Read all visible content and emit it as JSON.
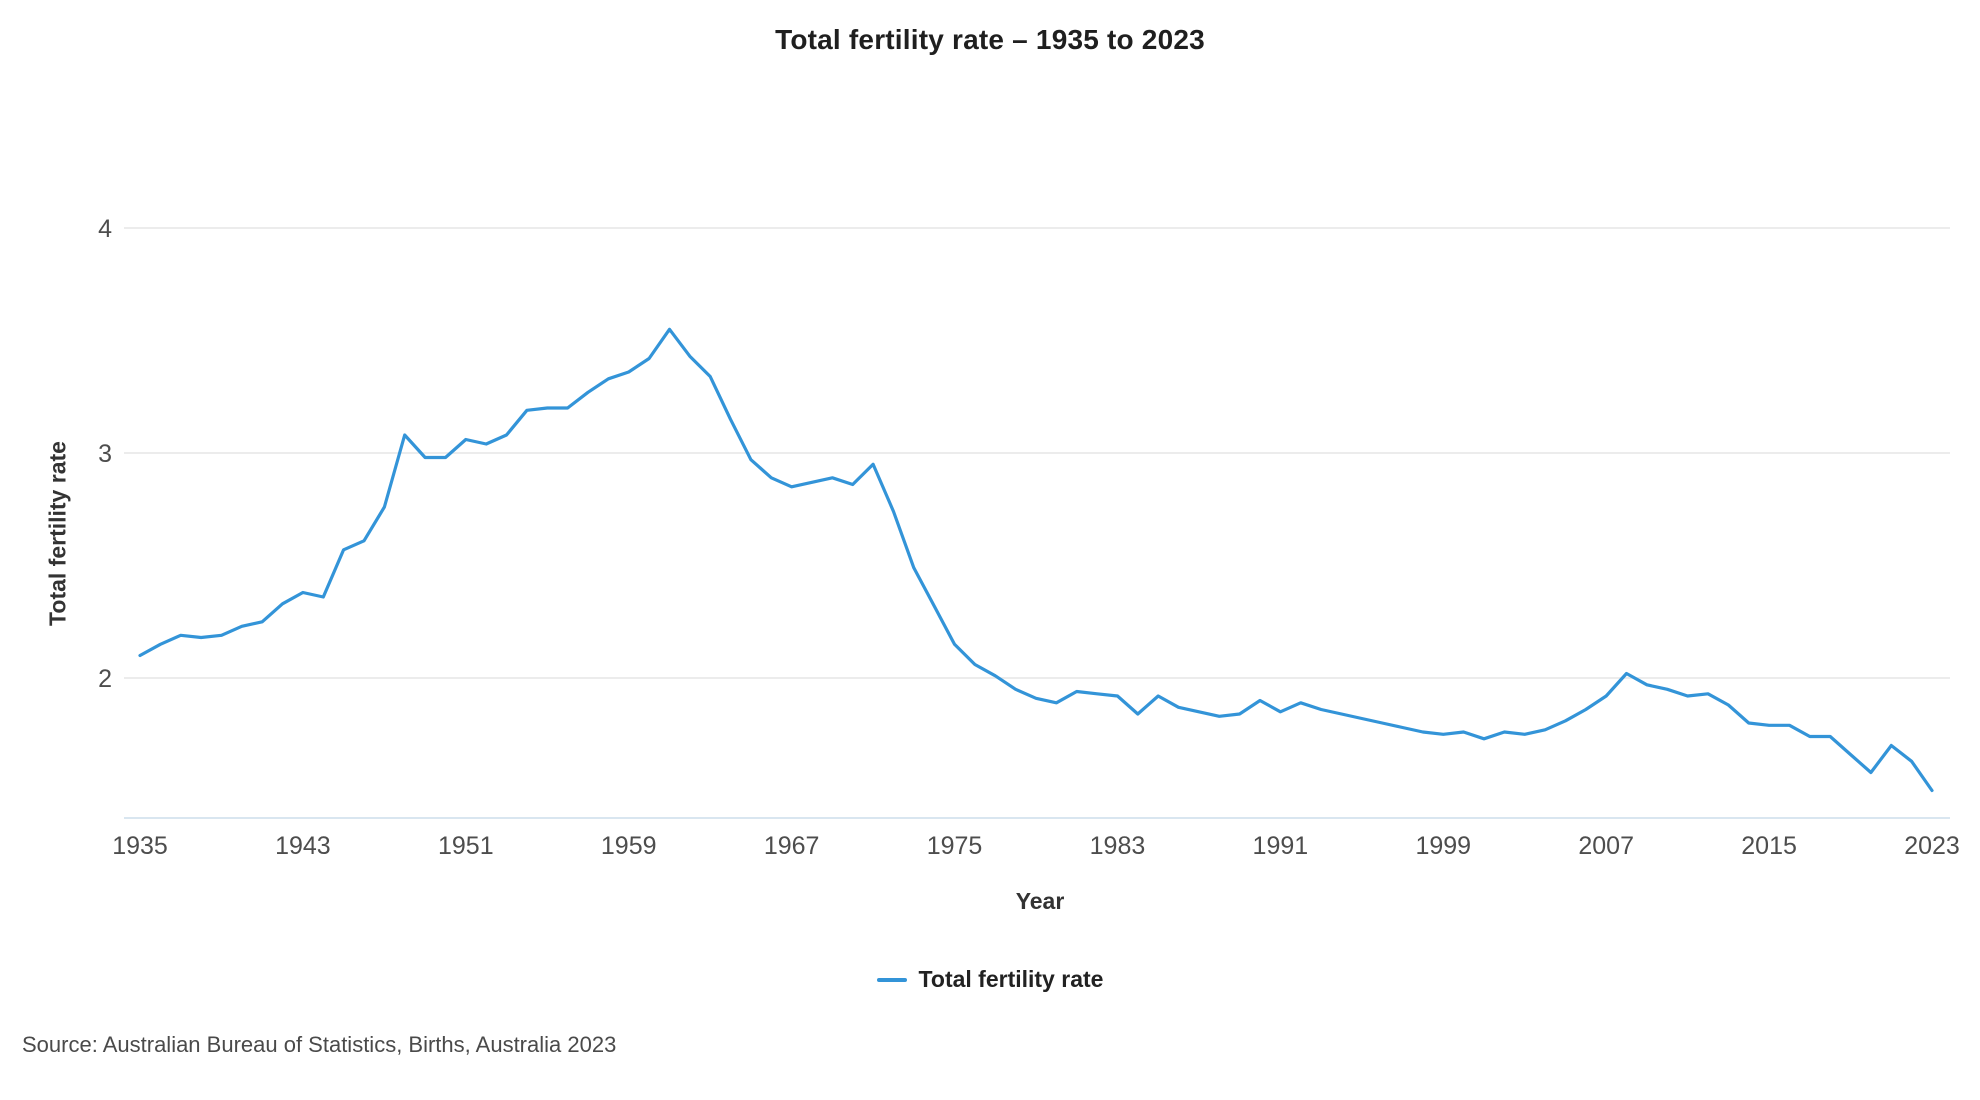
{
  "chart": {
    "title": "Total fertility rate – 1935 to 2023",
    "xlabel": "Year",
    "ylabel": "Total fertility rate",
    "legend_label": "Total fertility rate",
    "source": "Source: Australian Bureau of Statistics, Births, Australia 2023"
  },
  "colors": {
    "line": "#3394d8",
    "grid": "#e6e6e6",
    "axis_line": "#d9e6f0",
    "tick_text": "#4d4d4d"
  },
  "chart_data": {
    "type": "line",
    "title": "Total fertility rate – 1935 to 2023",
    "xlabel": "Year",
    "ylabel": "Total fertility rate",
    "grid": "horizontal",
    "legend_position": "bottom",
    "xlim": [
      1935,
      2023
    ],
    "ylim": [
      1.38,
      4.35
    ],
    "x_ticks": [
      1935,
      1943,
      1951,
      1959,
      1967,
      1975,
      1983,
      1991,
      1999,
      2007,
      2015,
      2023
    ],
    "y_ticks": [
      2,
      3,
      4
    ],
    "series": [
      {
        "name": "Total fertility rate",
        "color": "#3394d8",
        "x": [
          1935,
          1936,
          1937,
          1938,
          1939,
          1940,
          1941,
          1942,
          1943,
          1944,
          1945,
          1946,
          1947,
          1948,
          1949,
          1950,
          1951,
          1952,
          1953,
          1954,
          1955,
          1956,
          1957,
          1958,
          1959,
          1960,
          1961,
          1962,
          1963,
          1964,
          1965,
          1966,
          1967,
          1968,
          1969,
          1970,
          1971,
          1972,
          1973,
          1974,
          1975,
          1976,
          1977,
          1978,
          1979,
          1980,
          1981,
          1982,
          1983,
          1984,
          1985,
          1986,
          1987,
          1988,
          1989,
          1990,
          1991,
          1992,
          1993,
          1994,
          1995,
          1996,
          1997,
          1998,
          1999,
          2000,
          2001,
          2002,
          2003,
          2004,
          2005,
          2006,
          2007,
          2008,
          2009,
          2010,
          2011,
          2012,
          2013,
          2014,
          2015,
          2016,
          2017,
          2018,
          2019,
          2020,
          2021,
          2022,
          2023
        ],
        "values": [
          2.1,
          2.15,
          2.19,
          2.18,
          2.19,
          2.23,
          2.25,
          2.33,
          2.38,
          2.36,
          2.57,
          2.61,
          2.76,
          3.08,
          2.98,
          2.98,
          3.06,
          3.04,
          3.08,
          3.19,
          3.2,
          3.2,
          3.27,
          3.33,
          3.36,
          3.42,
          3.55,
          3.43,
          3.34,
          3.15,
          2.97,
          2.89,
          2.85,
          2.87,
          2.89,
          2.86,
          2.95,
          2.74,
          2.49,
          2.32,
          2.15,
          2.06,
          2.01,
          1.95,
          1.91,
          1.89,
          1.94,
          1.93,
          1.92,
          1.84,
          1.92,
          1.87,
          1.85,
          1.83,
          1.84,
          1.9,
          1.85,
          1.89,
          1.86,
          1.84,
          1.82,
          1.8,
          1.78,
          1.76,
          1.75,
          1.76,
          1.73,
          1.76,
          1.75,
          1.77,
          1.81,
          1.86,
          1.92,
          2.02,
          1.97,
          1.95,
          1.92,
          1.93,
          1.88,
          1.8,
          1.79,
          1.79,
          1.74,
          1.74,
          1.66,
          1.58,
          1.7,
          1.63,
          1.5
        ]
      }
    ]
  }
}
